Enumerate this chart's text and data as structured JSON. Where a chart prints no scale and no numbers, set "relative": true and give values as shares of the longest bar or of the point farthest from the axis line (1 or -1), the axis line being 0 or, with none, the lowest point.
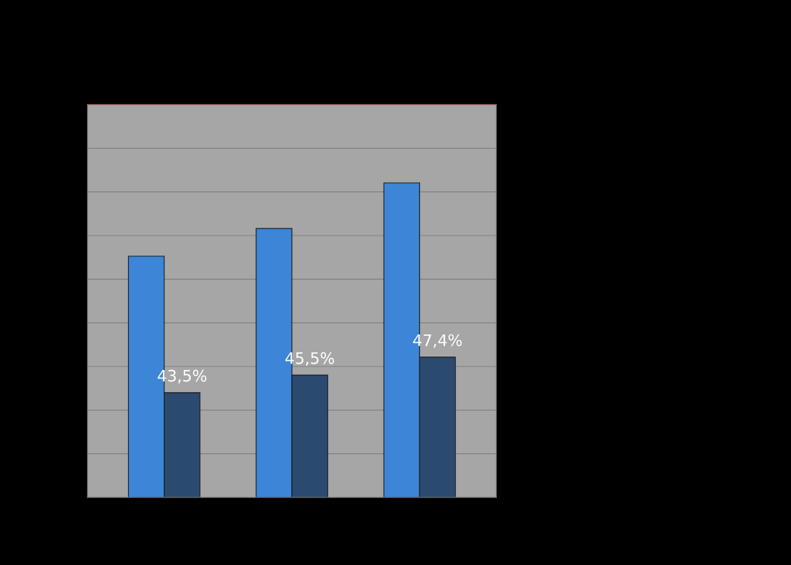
{
  "chart_data": {
    "type": "bar",
    "relative": true,
    "categories": [
      null,
      null,
      null
    ],
    "grid": "y",
    "series": [
      {
        "color": "#3d85d6",
        "values": [
          0.767,
          0.855,
          1.0
        ]
      },
      {
        "color": "#2b4a70",
        "values": [
          0.333,
          0.389,
          0.446
        ]
      }
    ],
    "annotations": [
      {
        "text": "43,5%",
        "y": 0.333
      },
      {
        "text": "45,5%",
        "y": 0.389
      },
      {
        "text": "47,4%",
        "y": 0.446
      }
    ]
  }
}
